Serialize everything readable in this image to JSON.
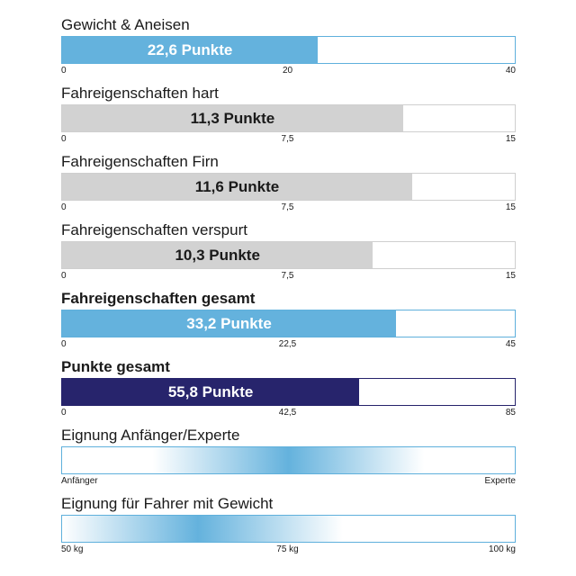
{
  "chart_data": {
    "type": "bar",
    "colors": {
      "blue": "#64b2dd",
      "grey": "#d2d2d2",
      "navy": "#27246c",
      "border_blue": "#5fb0dc"
    },
    "bars": [
      {
        "title": "Gewicht & Aneisen",
        "title_bold": false,
        "value": 22.6,
        "max": 40,
        "label": "22,6 Punkte",
        "color": "blue",
        "ticks": [
          "0",
          "20",
          "40"
        ]
      },
      {
        "title": "Fahreigenschaften hart",
        "title_bold": false,
        "value": 11.3,
        "max": 15,
        "label": "11,3 Punkte",
        "color": "grey",
        "ticks": [
          "0",
          "7,5",
          "15"
        ]
      },
      {
        "title": "Fahreigenschaften Firn",
        "title_bold": false,
        "value": 11.6,
        "max": 15,
        "label": "11,6 Punkte",
        "color": "grey",
        "ticks": [
          "0",
          "7,5",
          "15"
        ]
      },
      {
        "title": "Fahreigenschaften verspurt",
        "title_bold": false,
        "value": 10.3,
        "max": 15,
        "label": "10,3 Punkte",
        "color": "grey",
        "ticks": [
          "0",
          "7,5",
          "15"
        ]
      },
      {
        "title": "Fahreigenschaften gesamt",
        "title_bold": true,
        "value": 33.2,
        "max": 45,
        "label": "33,2 Punkte",
        "color": "blue",
        "ticks": [
          "0",
          "22,5",
          "45"
        ]
      },
      {
        "title": "Punkte gesamt",
        "title_bold": true,
        "value": 55.8,
        "max": 85,
        "label": "55,8 Punkte",
        "color": "navy",
        "ticks": [
          "0",
          "42,5",
          "85"
        ]
      }
    ],
    "suitability": [
      {
        "title": "Eignung Anfänger/Experte",
        "peak": 0.5,
        "spread": 0.3,
        "ticks": [
          "Anfänger",
          "",
          "Experte"
        ]
      },
      {
        "title": "Eignung für Fahrer mit Gewicht",
        "peak": 0.3,
        "spread": 0.32,
        "ticks": [
          "50 kg",
          "75 kg",
          "100 kg"
        ]
      }
    ]
  }
}
